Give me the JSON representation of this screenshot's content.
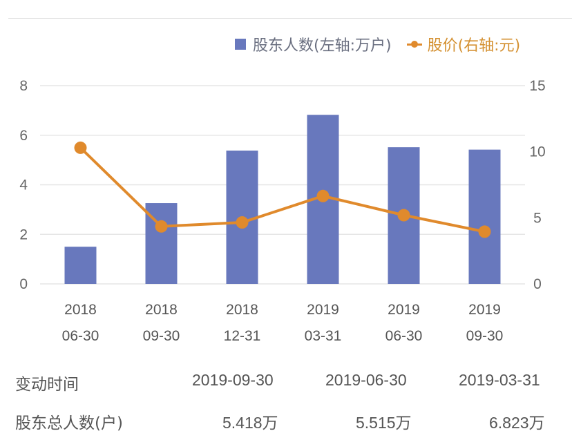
{
  "legend": {
    "bar_label": "股东人数(左轴:万户)",
    "line_label": "股价(右轴:元)"
  },
  "colors": {
    "bar": "#6878bd",
    "line": "#e08a2c",
    "grid": "#e6e6e6"
  },
  "chart_data": {
    "type": "bar+line",
    "title": "",
    "categories": [
      "2018\n06-30",
      "2018\n09-30",
      "2018\n12-31",
      "2019\n03-31",
      "2019\n06-30",
      "2019\n09-30"
    ],
    "category_lines": [
      [
        "2018",
        "06-30"
      ],
      [
        "2018",
        "09-30"
      ],
      [
        "2018",
        "12-31"
      ],
      [
        "2019",
        "03-31"
      ],
      [
        "2019",
        "06-30"
      ],
      [
        "2019",
        "09-30"
      ]
    ],
    "series": [
      {
        "name": "股东人数(左轴:万户)",
        "type": "bar",
        "axis": "left",
        "values": [
          1.5,
          3.26,
          5.38,
          6.823,
          5.515,
          5.418
        ]
      },
      {
        "name": "股价(右轴:元)",
        "type": "line",
        "axis": "right",
        "values": [
          10.3,
          4.35,
          4.65,
          6.65,
          5.2,
          3.95
        ]
      }
    ],
    "left_axis": {
      "ticks": [
        "0",
        "2",
        "4",
        "6",
        "8"
      ],
      "ylim": [
        0,
        8
      ]
    },
    "right_axis": {
      "ticks": [
        "0",
        "5",
        "10",
        "15"
      ],
      "ylim": [
        0,
        15
      ]
    },
    "grid": true,
    "legend_position": "top-right"
  },
  "table": {
    "row1_head": "变动时间",
    "row1": [
      "2019-09-30",
      "2019-06-30",
      "2019-03-31"
    ],
    "row2_head": "股东总人数(户)",
    "row2": [
      "5.418万",
      "5.515万",
      "6.823万"
    ]
  }
}
